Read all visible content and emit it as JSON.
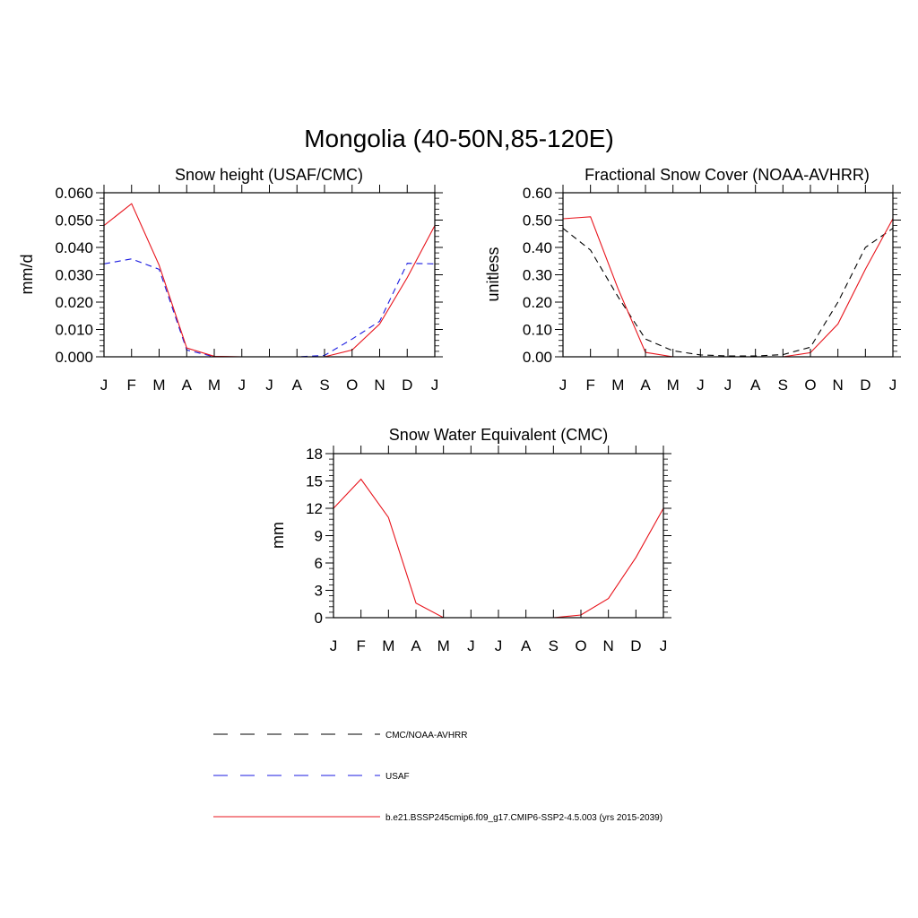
{
  "figure": {
    "title": "Mongolia (40-50N,85-120E)"
  },
  "colors": {
    "model": "#e8141c",
    "usaf": "#1a1ae0",
    "obs": "#000000"
  },
  "legend": {
    "items": [
      {
        "label": "CMC/NOAA-AVHRR",
        "style": "dashed",
        "color": "#000000"
      },
      {
        "label": "USAF",
        "style": "dashed",
        "color": "#1a1ae0"
      },
      {
        "label": "b.e21.BSSP245cmip6.f09_g17.CMIP6-SSP2-4.5.003 (yrs 2015-2039)",
        "style": "solid",
        "color": "#e8141c"
      }
    ]
  },
  "chart_data": [
    {
      "type": "line",
      "title": "Snow height (USAF/CMC)",
      "xlabel": "",
      "ylabel": "mm/d",
      "categories": [
        "J",
        "F",
        "M",
        "A",
        "M",
        "J",
        "J",
        "A",
        "S",
        "O",
        "N",
        "D",
        "J"
      ],
      "ylim": [
        0,
        0.06
      ],
      "yticks": [
        "0.000",
        "0.010",
        "0.020",
        "0.030",
        "0.040",
        "0.050",
        "0.060"
      ],
      "series": [
        {
          "name": "CMC/NOAA-AVHRR",
          "style": "dashed",
          "color": "#000000",
          "values": [
            0,
            0,
            0,
            0,
            0,
            0,
            0,
            0,
            0,
            0,
            0,
            0,
            0
          ]
        },
        {
          "name": "USAF",
          "style": "dashed",
          "color": "#1a1ae0",
          "values": [
            0.034,
            0.0358,
            0.032,
            0.0025,
            0,
            0,
            0,
            0,
            0.0005,
            0.0065,
            0.013,
            0.0342,
            0.034
          ]
        },
        {
          "name": "b.e21.BSSP245cmip6.f09_g17.CMIP6-SSP2-4.5.003 (yrs 2015-2039)",
          "style": "solid",
          "color": "#e8141c",
          "values": [
            0.048,
            0.056,
            0.0335,
            0.0032,
            0.0002,
            0,
            0,
            0,
            0,
            0.0025,
            0.012,
            0.029,
            0.048
          ]
        }
      ]
    },
    {
      "type": "line",
      "title": "Fractional Snow Cover (NOAA-AVHRR)",
      "xlabel": "",
      "ylabel": "unitless",
      "categories": [
        "J",
        "F",
        "M",
        "A",
        "M",
        "J",
        "J",
        "A",
        "S",
        "O",
        "N",
        "D",
        "J"
      ],
      "ylim": [
        0,
        0.6
      ],
      "yticks": [
        "0.00",
        "0.10",
        "0.20",
        "0.30",
        "0.40",
        "0.50",
        "0.60"
      ],
      "series": [
        {
          "name": "CMC/NOAA-AVHRR",
          "style": "dashed",
          "color": "#000000",
          "values": [
            0.47,
            0.39,
            0.22,
            0.065,
            0.022,
            0.007,
            0.003,
            0.003,
            0.008,
            0.035,
            0.2,
            0.4,
            0.47
          ]
        },
        {
          "name": "b.e21.BSSP245cmip6.f09_g17.CMIP6-SSP2-4.5.003 (yrs 2015-2039)",
          "style": "solid",
          "color": "#e8141c",
          "values": [
            0.505,
            0.512,
            0.25,
            0.016,
            0,
            0,
            0,
            0,
            0,
            0.015,
            0.12,
            0.32,
            0.505
          ]
        }
      ]
    },
    {
      "type": "line",
      "title": "Snow Water Equivalent (CMC)",
      "xlabel": "",
      "ylabel": "mm",
      "categories": [
        "J",
        "F",
        "M",
        "A",
        "M",
        "J",
        "J",
        "A",
        "S",
        "O",
        "N",
        "D",
        "J"
      ],
      "ylim": [
        0,
        18
      ],
      "yticks": [
        "0",
        "3",
        "6",
        "9",
        "12",
        "15",
        "18"
      ],
      "series": [
        {
          "name": "CMC/NOAA-AVHRR",
          "style": "dashed",
          "color": "#000000",
          "values": [
            0,
            0,
            0,
            0,
            0,
            0,
            0,
            0,
            0,
            0,
            0,
            0,
            0
          ]
        },
        {
          "name": "b.e21.BSSP245cmip6.f09_g17.CMIP6-SSP2-4.5.003 (yrs 2015-2039)",
          "style": "solid",
          "color": "#e8141c",
          "values": [
            12,
            15.2,
            11,
            1.6,
            0,
            0,
            0,
            0,
            0,
            0.3,
            2.1,
            6.6,
            12
          ]
        }
      ]
    }
  ]
}
